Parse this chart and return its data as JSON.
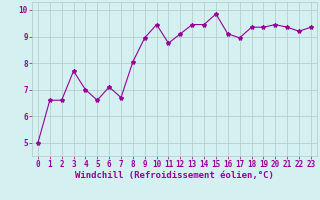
{
  "x": [
    0,
    1,
    2,
    3,
    4,
    5,
    6,
    7,
    8,
    9,
    10,
    11,
    12,
    13,
    14,
    15,
    16,
    17,
    18,
    19,
    20,
    21,
    22,
    23
  ],
  "y": [
    5.0,
    6.6,
    6.6,
    7.7,
    7.0,
    6.6,
    7.1,
    6.7,
    8.05,
    8.95,
    9.45,
    8.75,
    9.1,
    9.45,
    9.45,
    9.85,
    9.1,
    8.95,
    9.35,
    9.35,
    9.45,
    9.35,
    9.2,
    9.35
  ],
  "line_color": "#990099",
  "marker": "*",
  "marker_size": 3,
  "bg_color": "#d4f0f0",
  "grid_color": "#b0c8c8",
  "xlabel": "Windchill (Refroidissement éolien,°C)",
  "xlabel_color": "#990099",
  "ylim": [
    4.5,
    10.3
  ],
  "xlim": [
    -0.5,
    23.5
  ],
  "yticks": [
    5,
    6,
    7,
    8,
    9,
    10
  ],
  "xticks": [
    0,
    1,
    2,
    3,
    4,
    5,
    6,
    7,
    8,
    9,
    10,
    11,
    12,
    13,
    14,
    15,
    16,
    17,
    18,
    19,
    20,
    21,
    22,
    23
  ],
  "tick_color": "#990099",
  "tick_labelsize": 5.5,
  "xlabel_fontsize": 6.5,
  "linewidth": 0.8
}
